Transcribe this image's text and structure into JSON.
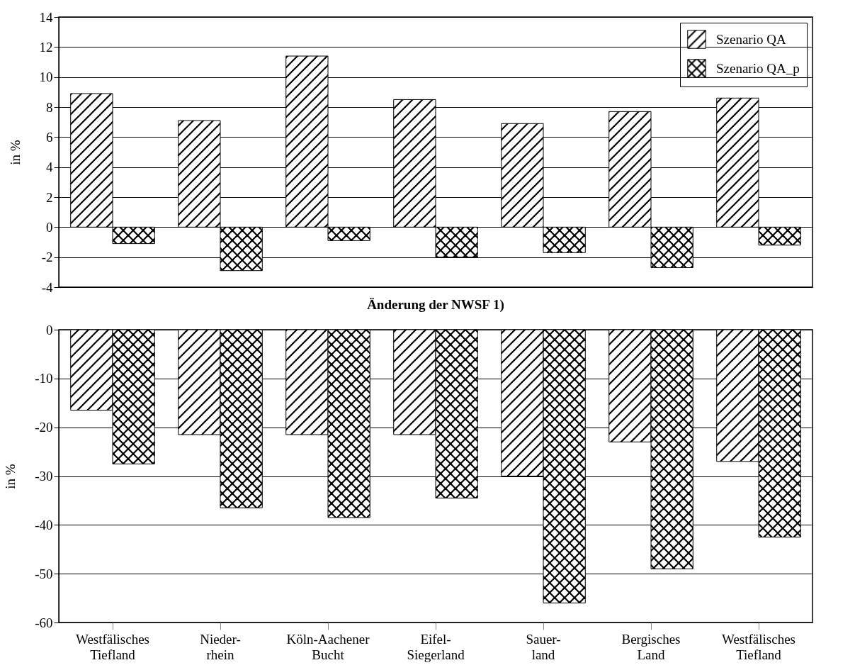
{
  "chart_data": [
    {
      "type": "bar",
      "categories": [
        null,
        null,
        null,
        null,
        null,
        null,
        null
      ],
      "ylabel": "in %",
      "ylim": [
        -4,
        14
      ],
      "yticks": [
        -4,
        -2,
        0,
        2,
        4,
        6,
        8,
        10,
        12,
        14
      ],
      "grid": "y",
      "legend": "top right",
      "tick_labels": "y",
      "series": [
        {
          "name": "Szenario QA",
          "color": "#000000",
          "values": [
            8.9,
            7.1,
            11.4,
            8.5,
            6.9,
            7.7,
            8.6
          ]
        },
        {
          "name": "Szenario QA_p",
          "color": "#000000",
          "values": [
            -1.1,
            -2.9,
            -0.9,
            -2.0,
            -1.7,
            -2.7,
            -1.2
          ]
        }
      ]
    },
    {
      "type": "bar",
      "title": "Änderung der NWSF 1)",
      "categories": [
        "Westfälisches\nTiefland",
        "Nieder-\nrhein",
        "Köln-Aachener\nBucht",
        "Eifel-\nSiegerland",
        "Sauer-\nland",
        "Bergisches\nLand",
        "Westfälisches\nTiefland"
      ],
      "ylabel": "in %",
      "ylim": [
        -60,
        0
      ],
      "yticks": [
        -60,
        -50,
        -40,
        -30,
        -20,
        -10,
        0
      ],
      "grid": "y",
      "series": [
        {
          "color": "#000000",
          "values": [
            -16.5,
            -21.5,
            -21.5,
            -21.5,
            -30,
            -23,
            -27
          ]
        },
        {
          "color": "#000000",
          "values": [
            -27.5,
            -36.5,
            -38.5,
            -34.5,
            -56,
            -49,
            -42.5
          ]
        }
      ]
    }
  ]
}
